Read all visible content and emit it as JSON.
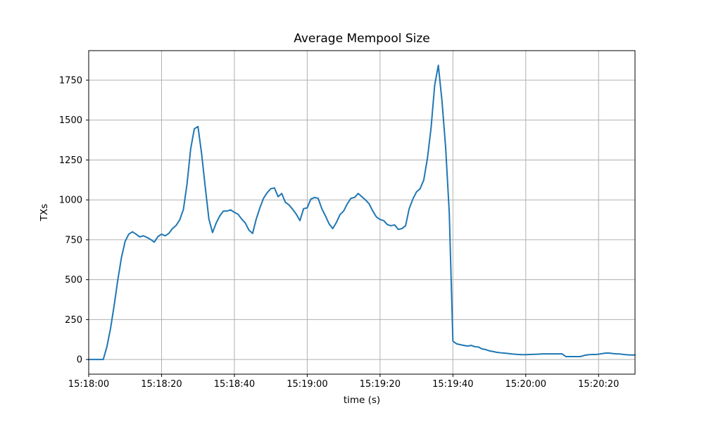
{
  "chart_data": {
    "type": "line",
    "title": "Average Mempool Size",
    "xlabel": "time (s)",
    "ylabel": "TXs",
    "grid": true,
    "legend": "none",
    "line_color": "#1f77b4",
    "grid_color": "#b0b0b0",
    "spine_color": "#000000",
    "x_tick_labels": [
      "15:18:00",
      "15:18:20",
      "15:18:40",
      "15:19:00",
      "15:19:20",
      "15:19:40",
      "15:20:00",
      "15:20:20"
    ],
    "x_tick_seconds": [
      0,
      20,
      40,
      60,
      80,
      100,
      120,
      140
    ],
    "y_ticks": [
      0,
      250,
      500,
      750,
      1000,
      1250,
      1500,
      1750
    ],
    "xlim_seconds": [
      0,
      150
    ],
    "ylim": [
      -92.15,
      1935.15
    ],
    "series": [
      {
        "name": "average mempool size",
        "start_time": "15:18:00",
        "interval_seconds": 1,
        "values": [
          0,
          0,
          0,
          0,
          0,
          80,
          195,
          340,
          500,
          640,
          740,
          785,
          800,
          785,
          768,
          775,
          765,
          752,
          735,
          770,
          785,
          775,
          790,
          820,
          840,
          875,
          940,
          1100,
          1320,
          1445,
          1460,
          1290,
          1080,
          880,
          795,
          855,
          900,
          930,
          930,
          937,
          922,
          910,
          880,
          855,
          810,
          790,
          880,
          950,
          1010,
          1045,
          1070,
          1075,
          1020,
          1040,
          985,
          968,
          941,
          910,
          870,
          945,
          950,
          1005,
          1015,
          1010,
          945,
          900,
          850,
          820,
          858,
          908,
          930,
          975,
          1010,
          1015,
          1040,
          1020,
          1000,
          975,
          930,
          893,
          877,
          870,
          845,
          838,
          843,
          815,
          820,
          838,
          945,
          1005,
          1050,
          1070,
          1125,
          1260,
          1450,
          1720,
          1843,
          1620,
          1330,
          920,
          115,
          98,
          93,
          88,
          84,
          88,
          80,
          78,
          66,
          62,
          54,
          50,
          45,
          42,
          40,
          38,
          35,
          33,
          31,
          30,
          30,
          31,
          32,
          33,
          34,
          35,
          35,
          35,
          35,
          35,
          35,
          18,
          18,
          18,
          18,
          18,
          25,
          29,
          31,
          31,
          33,
          37,
          40,
          40,
          37,
          35,
          34,
          31,
          29,
          28,
          28
        ]
      }
    ]
  }
}
